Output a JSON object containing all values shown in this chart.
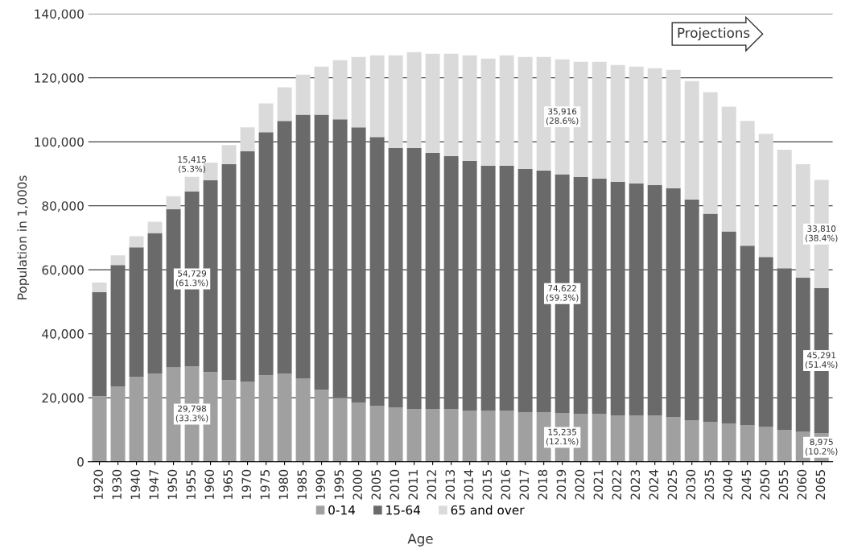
{
  "chart_data": {
    "type": "bar",
    "stacked": true,
    "xlabel": "Age",
    "ylabel": "Population in 1,000s",
    "categories": [
      "1920",
      "1930",
      "1940",
      "1947",
      "1950",
      "1955",
      "1960",
      "1965",
      "1970",
      "1975",
      "1980",
      "1985",
      "1990",
      "1995",
      "2000",
      "2005",
      "2010",
      "2011",
      "2012",
      "2013",
      "2014",
      "2015",
      "2016",
      "2017",
      "2018",
      "2019",
      "2020",
      "2021",
      "2022",
      "2023",
      "2024",
      "2025",
      "2030",
      "2035",
      "2040",
      "2045",
      "2050",
      "2055",
      "2060",
      "2065"
    ],
    "ylim": [
      0,
      140000
    ],
    "yticks": [
      {
        "value": 0,
        "label": "0"
      },
      {
        "value": 20000,
        "label": "20,000"
      },
      {
        "value": 40000,
        "label": "40,000"
      },
      {
        "value": 60000,
        "label": "60,000"
      },
      {
        "value": 80000,
        "label": "80,000"
      },
      {
        "value": 100000,
        "label": "100,000"
      },
      {
        "value": 120000,
        "label": "120,000"
      },
      {
        "value": 140000,
        "label": "140,000"
      }
    ],
    "grid": "y",
    "legend": "bottom",
    "series": [
      {
        "name": "0-14",
        "color": "#a0a0a0",
        "values": [
          20500,
          23500,
          26500,
          27500,
          29500,
          29798,
          28000,
          25500,
          25000,
          27000,
          27500,
          26000,
          22500,
          20000,
          18500,
          17500,
          17000,
          16500,
          16500,
          16500,
          16000,
          16000,
          16000,
          15500,
          15500,
          15235,
          15000,
          15000,
          14500,
          14500,
          14500,
          14000,
          13000,
          12500,
          12000,
          11500,
          11000,
          10000,
          9500,
          8975
        ],
        "value_labels": [
          null,
          null,
          null,
          null,
          null,
          "29,798\n(33.3%)",
          null,
          null,
          null,
          null,
          null,
          null,
          null,
          null,
          null,
          null,
          null,
          null,
          null,
          null,
          null,
          null,
          null,
          null,
          null,
          "15,235\n(12.1%)",
          null,
          null,
          null,
          null,
          null,
          null,
          null,
          null,
          null,
          null,
          null,
          null,
          null,
          "8,975\n(10.2%)"
        ]
      },
      {
        "name": "15-64",
        "color": "#6a6a6a",
        "values": [
          32500,
          38000,
          40500,
          44000,
          49500,
          54729,
          60000,
          67500,
          72000,
          76000,
          79000,
          82500,
          86000,
          87000,
          86000,
          84000,
          81000,
          81500,
          80000,
          79000,
          78000,
          76500,
          76500,
          76000,
          75500,
          74622,
          74000,
          73500,
          73000,
          72500,
          72000,
          71500,
          69000,
          65000,
          60000,
          56000,
          53000,
          50500,
          48000,
          45291
        ],
        "value_labels": [
          null,
          null,
          null,
          null,
          null,
          "54,729\n(61.3%)",
          null,
          null,
          null,
          null,
          null,
          null,
          null,
          null,
          null,
          null,
          null,
          null,
          null,
          null,
          null,
          null,
          null,
          null,
          null,
          "74,622\n(59.3%)",
          null,
          null,
          null,
          null,
          null,
          null,
          null,
          null,
          null,
          null,
          null,
          null,
          null,
          "45,291\n(51.4%)"
        ]
      },
      {
        "name": "65 and over",
        "color": "#dadada",
        "values": [
          3000,
          3000,
          3500,
          3500,
          4000,
          4500,
          5500,
          6000,
          7500,
          9000,
          10500,
          12500,
          15000,
          18500,
          22000,
          25500,
          29000,
          30000,
          31000,
          32000,
          33000,
          33500,
          34500,
          35000,
          35500,
          35916,
          36000,
          36500,
          36500,
          36500,
          36500,
          37000,
          37000,
          38000,
          39000,
          39000,
          38500,
          37000,
          35500,
          33810
        ],
        "value_labels": [
          null,
          null,
          null,
          null,
          null,
          null,
          null,
          null,
          null,
          null,
          null,
          null,
          null,
          null,
          null,
          null,
          null,
          null,
          null,
          null,
          null,
          null,
          null,
          null,
          null,
          "35,916\n(28.6%)",
          null,
          null,
          null,
          null,
          null,
          null,
          null,
          null,
          null,
          null,
          null,
          null,
          null,
          "33,810\n(38.4%)"
        ]
      }
    ],
    "annotations": [
      {
        "text": "15,415\n(5.3%)",
        "x": "1955",
        "y": 89000
      },
      "Projections"
    ]
  }
}
